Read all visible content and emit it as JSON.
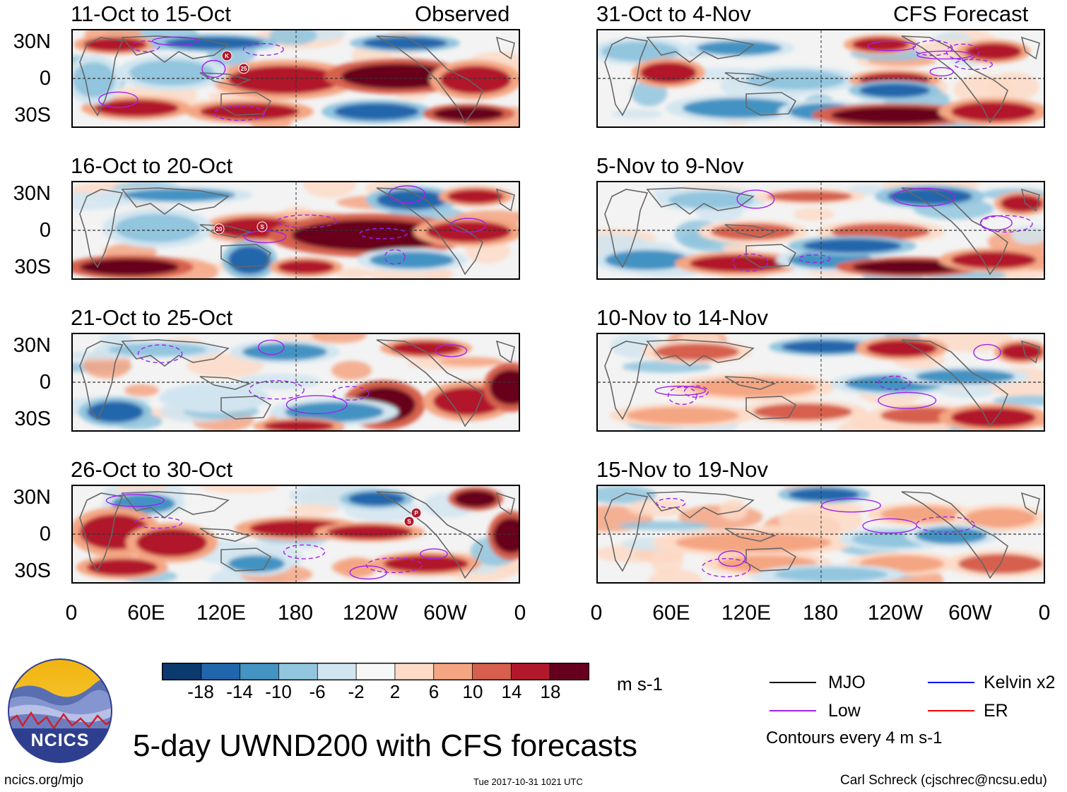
{
  "panels_left": [
    {
      "period": "11-Oct to 15-Oct",
      "tag": "Observed",
      "storms": [
        "K",
        "25"
      ]
    },
    {
      "period": "16-Oct to 20-Oct",
      "tag": "",
      "storms": [
        "20",
        "S"
      ]
    },
    {
      "period": "21-Oct to 25-Oct",
      "tag": "",
      "storms": []
    },
    {
      "period": "26-Oct to 30-Oct",
      "tag": "",
      "storms": [
        "P",
        "S"
      ]
    }
  ],
  "panels_right": [
    {
      "period": "31-Oct to 4-Nov",
      "tag": "CFS Forecast"
    },
    {
      "period": "5-Nov to 9-Nov",
      "tag": ""
    },
    {
      "period": "10-Nov to 14-Nov",
      "tag": ""
    },
    {
      "period": "15-Nov to 19-Nov",
      "tag": ""
    }
  ],
  "lat_labels": [
    "30N",
    "0",
    "30S"
  ],
  "lon_labels": [
    "0",
    "60E",
    "120E",
    "180",
    "120W",
    "60W",
    "0"
  ],
  "colorbar": {
    "ticks": [
      "-18",
      "-14",
      "-10",
      "-6",
      "-2",
      "2",
      "6",
      "10",
      "14",
      "18"
    ],
    "colors": [
      "#0b3a6e",
      "#2166ac",
      "#4393c3",
      "#92c5de",
      "#d1e5f0",
      "#f7f7f7",
      "#fddbc7",
      "#f4a582",
      "#d6604d",
      "#b2182b",
      "#67001f"
    ],
    "units": "m s-1"
  },
  "legend": {
    "mjo": {
      "label": "MJO",
      "color": "#000000"
    },
    "low": {
      "label": "Low",
      "color": "#a020f0"
    },
    "kelvin": {
      "label": "Kelvin x2",
      "color": "#0000ff"
    },
    "er": {
      "label": "ER",
      "color": "#ff0000"
    },
    "contour_note": "Contours every 4 m s-1"
  },
  "logo_text": "NCICS",
  "main_title": "5-day UWND200 with CFS forecasts",
  "footer": {
    "url": "ncics.org/mjo",
    "timestamp": "Tue 2017-10-31 1021 UTC",
    "author": "Carl Schreck (cjschrec@ncsu.edu)"
  }
}
